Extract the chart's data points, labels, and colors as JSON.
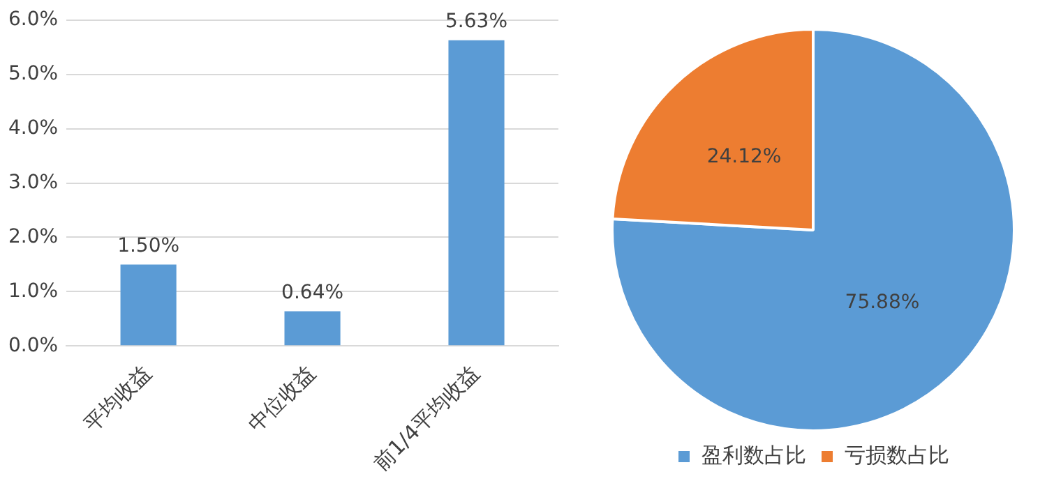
{
  "chart_data": [
    {
      "type": "bar",
      "categories": [
        "平均收益",
        "中位收益",
        "前1/4平均收益"
      ],
      "values": [
        1.5,
        0.64,
        5.63
      ],
      "color": "#5b9bd5",
      "value_labels": [
        "1.50%",
        "0.64%",
        "5.63%"
      ],
      "ylim": [
        0,
        6
      ],
      "yticks": [
        {
          "value": 0,
          "label": "0.0%"
        },
        {
          "value": 1,
          "label": "1.0%"
        },
        {
          "value": 2,
          "label": "2.0%"
        },
        {
          "value": 3,
          "label": "3.0%"
        },
        {
          "value": 4,
          "label": "4.0%"
        },
        {
          "value": 5,
          "label": "5.0%"
        },
        {
          "value": 6,
          "label": "6.0%"
        }
      ],
      "grid": "y"
    },
    {
      "type": "pie",
      "categories": [
        "盈利数占比",
        "亏损数占比"
      ],
      "values": [
        75.88,
        24.12
      ],
      "colors": [
        "#5b9bd5",
        "#ed7d31"
      ],
      "value_labels": [
        "75.88%",
        "24.12%"
      ],
      "legend": "bottom"
    }
  ]
}
